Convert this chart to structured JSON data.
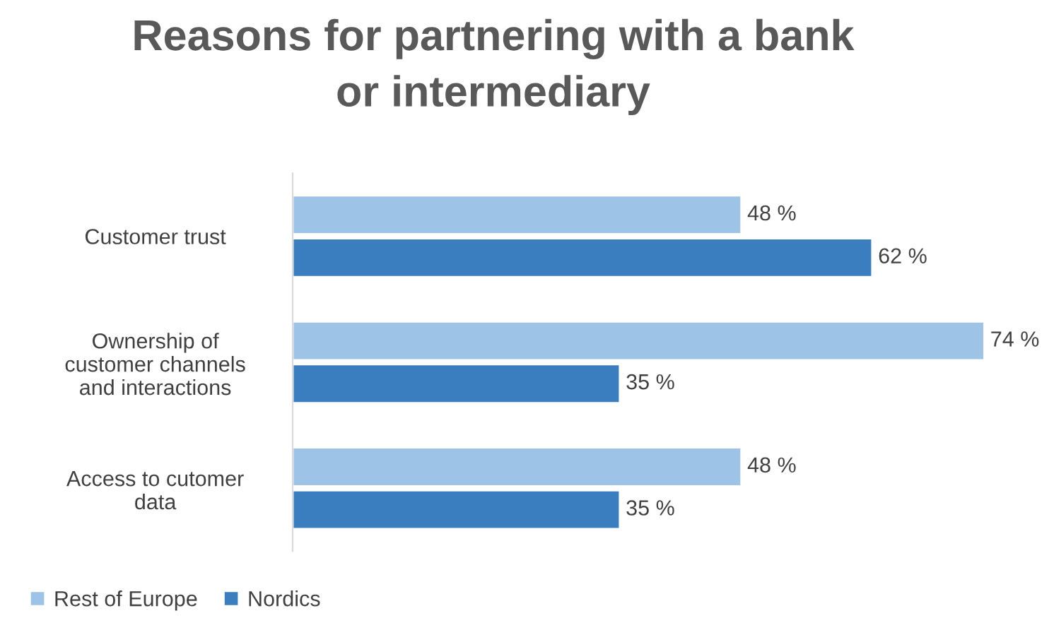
{
  "chart_data": {
    "type": "bar",
    "orientation": "horizontal",
    "title": "Reasons for partnering with a bank\nor intermediary",
    "categories": [
      "Customer trust",
      "Ownership of\ncustomer channels\nand interactions",
      "Access to cutomer\ndata"
    ],
    "series": [
      {
        "name": "Rest of Europe",
        "color": "#9dc3e6",
        "values": [
          48,
          74,
          48
        ],
        "value_labels": [
          "48 %",
          "74 %",
          "48 %"
        ]
      },
      {
        "name": "Nordics",
        "color": "#3a7ec0",
        "values": [
          62,
          35,
          35
        ],
        "value_labels": [
          "62 %",
          "35 %",
          "35 %"
        ]
      }
    ],
    "legend": "bottom left",
    "grid": false
  }
}
